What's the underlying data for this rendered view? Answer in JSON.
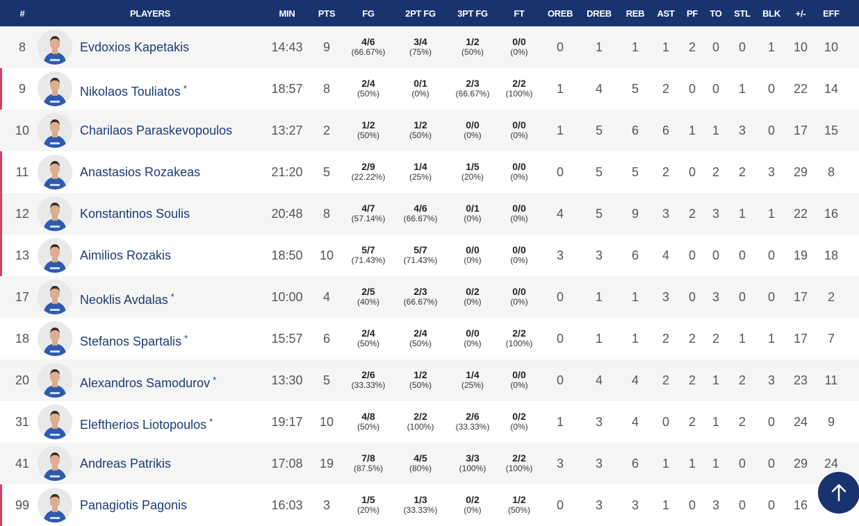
{
  "colors": {
    "header_bg": "#19336f",
    "starter_marker": "#d6415f",
    "name_link": "#1b3a78",
    "row_alt": "#f5f5f5"
  },
  "columns": [
    "#",
    "PLAYERS",
    "MIN",
    "PTS",
    "FG",
    "2PT FG",
    "3PT FG",
    "FT",
    "OREB",
    "DREB",
    "REB",
    "AST",
    "PF",
    "TO",
    "STL",
    "BLK",
    "+/-",
    "EFF"
  ],
  "players": [
    {
      "num": "8",
      "name": "Evdoxios Kapetakis",
      "star": "",
      "starter": false,
      "min": "14:43",
      "pts": "9",
      "fg": [
        "4/6",
        "(66.67%)"
      ],
      "fg2": [
        "3/4",
        "(75%)"
      ],
      "fg3": [
        "1/2",
        "(50%)"
      ],
      "ft": [
        "0/0",
        "(0%)"
      ],
      "stats": [
        "0",
        "1",
        "1",
        "1",
        "2",
        "0",
        "0",
        "1",
        "10",
        "10"
      ]
    },
    {
      "num": "9",
      "name": "Nikolaos Touliatos",
      "star": "*",
      "starter": true,
      "min": "18:57",
      "pts": "8",
      "fg": [
        "2/4",
        "(50%)"
      ],
      "fg2": [
        "0/1",
        "(0%)"
      ],
      "fg3": [
        "2/3",
        "(66.67%)"
      ],
      "ft": [
        "2/2",
        "(100%)"
      ],
      "stats": [
        "1",
        "4",
        "5",
        "2",
        "0",
        "0",
        "1",
        "0",
        "22",
        "14"
      ]
    },
    {
      "num": "10",
      "name": "Charilaos Paraskevopoulos",
      "star": "",
      "starter": false,
      "min": "13:27",
      "pts": "2",
      "fg": [
        "1/2",
        "(50%)"
      ],
      "fg2": [
        "1/2",
        "(50%)"
      ],
      "fg3": [
        "0/0",
        "(0%)"
      ],
      "ft": [
        "0/0",
        "(0%)"
      ],
      "stats": [
        "1",
        "5",
        "6",
        "6",
        "1",
        "1",
        "3",
        "0",
        "17",
        "15"
      ]
    },
    {
      "num": "11",
      "name": "Anastasios Rozakeas",
      "star": "",
      "starter": true,
      "min": "21:20",
      "pts": "5",
      "fg": [
        "2/9",
        "(22.22%)"
      ],
      "fg2": [
        "1/4",
        "(25%)"
      ],
      "fg3": [
        "1/5",
        "(20%)"
      ],
      "ft": [
        "0/0",
        "(0%)"
      ],
      "stats": [
        "0",
        "5",
        "5",
        "2",
        "0",
        "2",
        "2",
        "3",
        "29",
        "8"
      ]
    },
    {
      "num": "12",
      "name": "Konstantinos Soulis",
      "star": "",
      "starter": true,
      "min": "20:48",
      "pts": "8",
      "fg": [
        "4/7",
        "(57.14%)"
      ],
      "fg2": [
        "4/6",
        "(66.67%)"
      ],
      "fg3": [
        "0/1",
        "(0%)"
      ],
      "ft": [
        "0/0",
        "(0%)"
      ],
      "stats": [
        "4",
        "5",
        "9",
        "3",
        "2",
        "3",
        "1",
        "1",
        "22",
        "16"
      ]
    },
    {
      "num": "13",
      "name": "Aimilios Rozakis",
      "star": "",
      "starter": true,
      "min": "18:50",
      "pts": "10",
      "fg": [
        "5/7",
        "(71.43%)"
      ],
      "fg2": [
        "5/7",
        "(71.43%)"
      ],
      "fg3": [
        "0/0",
        "(0%)"
      ],
      "ft": [
        "0/0",
        "(0%)"
      ],
      "stats": [
        "3",
        "3",
        "6",
        "4",
        "0",
        "0",
        "0",
        "0",
        "19",
        "18"
      ]
    },
    {
      "num": "17",
      "name": "Neoklis Avdalas",
      "star": "*",
      "starter": false,
      "min": "10:00",
      "pts": "4",
      "fg": [
        "2/5",
        "(40%)"
      ],
      "fg2": [
        "2/3",
        "(66.67%)"
      ],
      "fg3": [
        "0/2",
        "(0%)"
      ],
      "ft": [
        "0/0",
        "(0%)"
      ],
      "stats": [
        "0",
        "1",
        "1",
        "3",
        "0",
        "3",
        "0",
        "0",
        "17",
        "2"
      ]
    },
    {
      "num": "18",
      "name": "Stefanos Spartalis",
      "star": "*",
      "starter": false,
      "min": "15:57",
      "pts": "6",
      "fg": [
        "2/4",
        "(50%)"
      ],
      "fg2": [
        "2/4",
        "(50%)"
      ],
      "fg3": [
        "0/0",
        "(0%)"
      ],
      "ft": [
        "2/2",
        "(100%)"
      ],
      "stats": [
        "0",
        "1",
        "1",
        "2",
        "2",
        "2",
        "1",
        "1",
        "17",
        "7"
      ]
    },
    {
      "num": "20",
      "name": "Alexandros Samodurov",
      "star": "*",
      "starter": false,
      "min": "13:30",
      "pts": "5",
      "fg": [
        "2/6",
        "(33.33%)"
      ],
      "fg2": [
        "1/2",
        "(50%)"
      ],
      "fg3": [
        "1/4",
        "(25%)"
      ],
      "ft": [
        "0/0",
        "(0%)"
      ],
      "stats": [
        "0",
        "4",
        "4",
        "2",
        "2",
        "1",
        "2",
        "3",
        "23",
        "11"
      ]
    },
    {
      "num": "31",
      "name": "Eleftherios Liotopoulos",
      "star": "*",
      "starter": false,
      "min": "19:17",
      "pts": "10",
      "fg": [
        "4/8",
        "(50%)"
      ],
      "fg2": [
        "2/2",
        "(100%)"
      ],
      "fg3": [
        "2/6",
        "(33.33%)"
      ],
      "ft": [
        "0/2",
        "(0%)"
      ],
      "stats": [
        "1",
        "3",
        "4",
        "0",
        "2",
        "1",
        "2",
        "0",
        "24",
        "9"
      ]
    },
    {
      "num": "41",
      "name": "Andreas Patrikis",
      "star": "",
      "starter": false,
      "min": "17:08",
      "pts": "19",
      "fg": [
        "7/8",
        "(87.5%)"
      ],
      "fg2": [
        "4/5",
        "(80%)"
      ],
      "fg3": [
        "3/3",
        "(100%)"
      ],
      "ft": [
        "2/2",
        "(100%)"
      ],
      "stats": [
        "3",
        "3",
        "6",
        "1",
        "1",
        "1",
        "0",
        "0",
        "29",
        "24"
      ]
    },
    {
      "num": "99",
      "name": "Panagiotis Pagonis",
      "star": "",
      "starter": true,
      "min": "16:03",
      "pts": "3",
      "fg": [
        "1/5",
        "(20%)"
      ],
      "fg2": [
        "1/3",
        "(33.33%)"
      ],
      "fg3": [
        "0/2",
        "(0%)"
      ],
      "ft": [
        "1/2",
        "(50%)"
      ],
      "stats": [
        "0",
        "3",
        "3",
        "1",
        "0",
        "3",
        "0",
        "0",
        "16",
        ""
      ]
    }
  ],
  "scroll_top_icon": "arrow-up-icon"
}
